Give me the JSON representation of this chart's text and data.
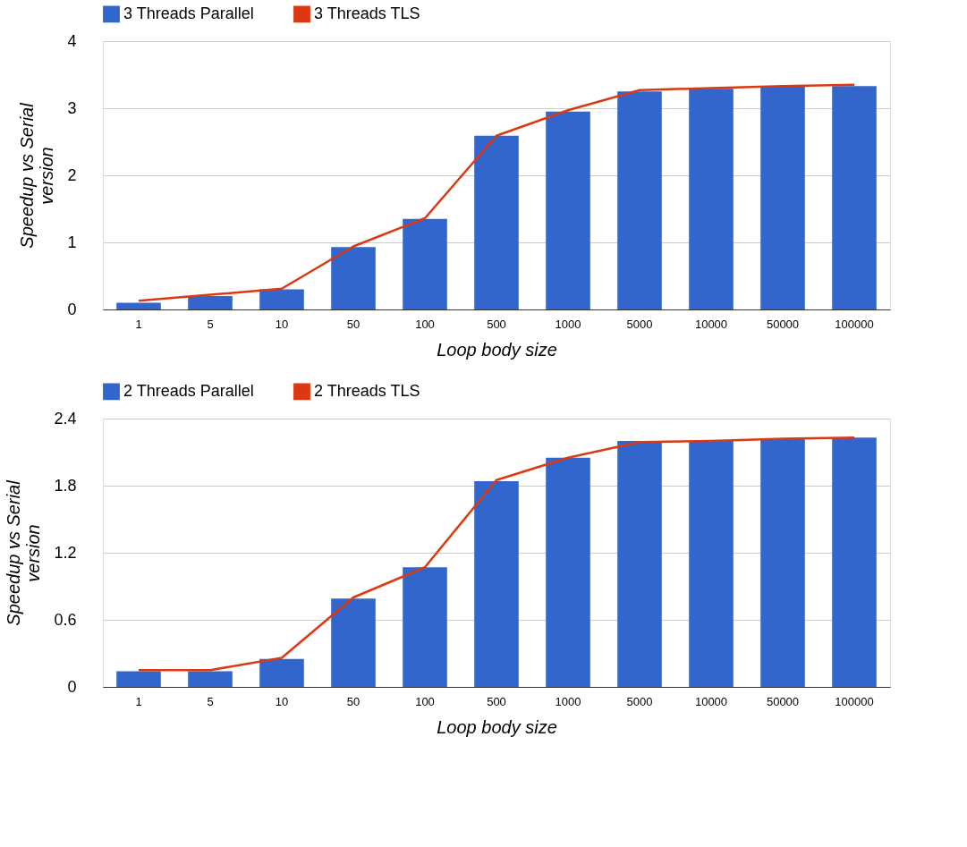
{
  "chart_data": [
    {
      "type": "bar",
      "categories": [
        "1",
        "5",
        "10",
        "50",
        "100",
        "500",
        "1000",
        "5000",
        "10000",
        "50000",
        "100000"
      ],
      "xlabel": "Loop body size",
      "ylabel": "Speedup vs Serial version",
      "ylim": [
        0,
        4
      ],
      "yticks": [
        0,
        1,
        2,
        3,
        4
      ],
      "grid": "y",
      "legend": "top left",
      "series": [
        {
          "name": "3 Threads Parallel",
          "type": "bar",
          "color": "#3366cc",
          "values": [
            0.1,
            0.2,
            0.3,
            0.93,
            1.35,
            2.59,
            2.95,
            3.25,
            3.29,
            3.32,
            3.33
          ]
        },
        {
          "name": "3 Threads TLS",
          "type": "line",
          "color": "#dc3912",
          "values": [
            0.13,
            0.22,
            0.31,
            0.94,
            1.36,
            2.59,
            2.97,
            3.27,
            3.3,
            3.33,
            3.35
          ]
        }
      ]
    },
    {
      "type": "bar",
      "categories": [
        "1",
        "5",
        "10",
        "50",
        "100",
        "500",
        "1000",
        "5000",
        "10000",
        "50000",
        "100000"
      ],
      "xlabel": "Loop body size",
      "ylabel": "Speedup vs Serial version",
      "ylim": [
        0,
        2.4
      ],
      "yticks": [
        0,
        0.6,
        1.2,
        1.8,
        2.4
      ],
      "grid": "y",
      "legend": "top left",
      "series": [
        {
          "name": "2 Threads Parallel",
          "type": "bar",
          "color": "#3366cc",
          "values": [
            0.14,
            0.14,
            0.25,
            0.79,
            1.07,
            1.84,
            2.05,
            2.2,
            2.2,
            2.22,
            2.23
          ]
        },
        {
          "name": "2 Threads TLS",
          "type": "line",
          "color": "#dc3912",
          "values": [
            0.15,
            0.15,
            0.26,
            0.8,
            1.07,
            1.85,
            2.05,
            2.19,
            2.2,
            2.22,
            2.23
          ]
        }
      ]
    }
  ]
}
